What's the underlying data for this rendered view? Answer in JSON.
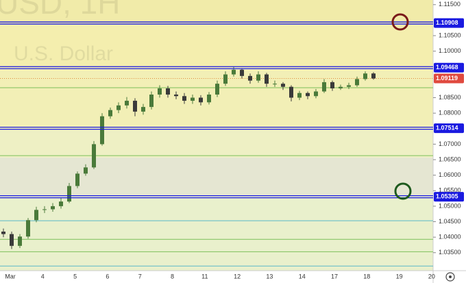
{
  "chart_data": {
    "type": "candlestick",
    "watermark": [
      "USD, 1H",
      "U.S. Dollar"
    ],
    "x_labels": [
      "Mar",
      "4",
      "5",
      "6",
      "7",
      "8",
      "11",
      "12",
      "13",
      "14",
      "17",
      "18",
      "19",
      "20"
    ],
    "ylim": [
      1.0292,
      1.1165
    ],
    "yticks": [
      {
        "value": 1.115,
        "label": "1.11500"
      },
      {
        "value": 1.105,
        "label": "1.10500"
      },
      {
        "value": 1.1,
        "label": "1.10000"
      },
      {
        "value": 1.085,
        "label": "1.08500"
      },
      {
        "value": 1.08,
        "label": "1.08000"
      },
      {
        "value": 1.07,
        "label": "1.07000"
      },
      {
        "value": 1.065,
        "label": "1.06500"
      },
      {
        "value": 1.06,
        "label": "1.06000"
      },
      {
        "value": 1.055,
        "label": "1.05500"
      },
      {
        "value": 1.05,
        "label": "1.05000"
      },
      {
        "value": 1.045,
        "label": "1.04500"
      },
      {
        "value": 1.04,
        "label": "1.04000"
      },
      {
        "value": 1.035,
        "label": "1.03500"
      }
    ],
    "up_color": "#4a7a3a",
    "down_color": "#3a3a3a",
    "candles": [
      [
        1.0418,
        1.0428,
        1.04,
        1.041
      ],
      [
        1.041,
        1.0418,
        1.0362,
        1.0372
      ],
      [
        1.0372,
        1.041,
        1.0365,
        1.0402
      ],
      [
        1.0402,
        1.0462,
        1.0395,
        1.0455
      ],
      [
        1.0455,
        1.0498,
        1.0448,
        1.0488
      ],
      [
        1.0488,
        1.05,
        1.0478,
        1.049
      ],
      [
        1.049,
        1.051,
        1.0482,
        1.05
      ],
      [
        1.05,
        1.0528,
        1.0492,
        1.0515
      ],
      [
        1.0515,
        1.0575,
        1.051,
        1.0565
      ],
      [
        1.0565,
        1.0612,
        1.0558,
        1.0605
      ],
      [
        1.0605,
        1.0635,
        1.0598,
        1.0625
      ],
      [
        1.0625,
        1.071,
        1.062,
        1.07
      ],
      [
        1.07,
        1.08,
        1.0695,
        1.079
      ],
      [
        1.079,
        1.0818,
        1.0782,
        1.081
      ],
      [
        1.081,
        1.0835,
        1.08,
        1.0825
      ],
      [
        1.0825,
        1.0852,
        1.0815,
        1.084
      ],
      [
        1.084,
        1.0848,
        1.079,
        1.0805
      ],
      [
        1.0805,
        1.083,
        1.0795,
        1.082
      ],
      [
        1.082,
        1.087,
        1.0812,
        1.086
      ],
      [
        1.086,
        1.089,
        1.085,
        1.088
      ],
      [
        1.088,
        1.0888,
        1.085,
        1.086
      ],
      [
        1.086,
        1.087,
        1.0845,
        1.0855
      ],
      [
        1.0855,
        1.0865,
        1.083,
        1.084
      ],
      [
        1.084,
        1.086,
        1.083,
        1.085
      ],
      [
        1.085,
        1.0858,
        1.0825,
        1.0835
      ],
      [
        1.0835,
        1.0868,
        1.0828,
        1.086
      ],
      [
        1.086,
        1.0905,
        1.0852,
        1.0895
      ],
      [
        1.0895,
        1.0935,
        1.0888,
        1.0925
      ],
      [
        1.0925,
        1.095,
        1.0918,
        1.094
      ],
      [
        1.094,
        1.0945,
        1.0912,
        1.092
      ],
      [
        1.092,
        1.0928,
        1.0895,
        1.0905
      ],
      [
        1.0905,
        1.0935,
        1.0898,
        1.0925
      ],
      [
        1.0925,
        1.093,
        1.0885,
        1.0895
      ],
      [
        1.0895,
        1.0905,
        1.0885,
        1.0895
      ],
      [
        1.0895,
        1.09,
        1.0875,
        1.0885
      ],
      [
        1.0885,
        1.089,
        1.0838,
        1.085
      ],
      [
        1.085,
        1.0872,
        1.0842,
        1.0865
      ],
      [
        1.0865,
        1.087,
        1.0845,
        1.0855
      ],
      [
        1.0855,
        1.0878,
        1.0848,
        1.087
      ],
      [
        1.087,
        1.091,
        1.0865,
        1.09
      ],
      [
        1.09,
        1.0905,
        1.0872,
        1.088
      ],
      [
        1.088,
        1.0892,
        1.0875,
        1.0885
      ],
      [
        1.0885,
        1.0898,
        1.0878,
        1.089
      ],
      [
        1.089,
        1.0918,
        1.0885,
        1.091
      ],
      [
        1.091,
        1.0935,
        1.0905,
        1.0928
      ],
      [
        1.0928,
        1.0932,
        1.0908,
        1.0912
      ]
    ],
    "levels": [
      {
        "value": 1.10908,
        "label": "1.10908"
      },
      {
        "value": 1.09468,
        "label": "1.09468"
      },
      {
        "value": 1.07514,
        "label": "1.07514"
      },
      {
        "value": 1.05305,
        "label": "1.05305"
      }
    ],
    "level_color": "#1a1ae0",
    "price": {
      "value": 1.09119,
      "label": "1.09119"
    },
    "price_color": "#e04a3f",
    "fib_lines": [
      {
        "value": 1.0882,
        "color": "#7cbf5a"
      },
      {
        "value": 1.0663,
        "color": "#7cbf5a"
      },
      {
        "value": 1.0453,
        "color": "#5ab8c8"
      },
      {
        "value": 1.0393,
        "color": "#7cbf5a"
      },
      {
        "value": 1.0353,
        "color": "#7cbf5a"
      },
      {
        "value": 1.0307,
        "color": "#5ab8c8"
      }
    ]
  }
}
